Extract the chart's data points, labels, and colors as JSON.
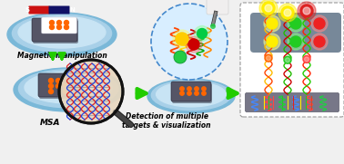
{
  "bg_color": "#f0f0f0",
  "magnet_red": "#cc1111",
  "magnet_blue": "#111166",
  "disk_outer": "#7ab8d8",
  "disk_mid": "#a8d0e8",
  "disk_inner": "#c8e4f4",
  "chip_dark": "#555566",
  "chip_light": "#778899",
  "card_white": "#ffffff",
  "orange_dot": "#ff6600",
  "label_magnetic": "Magnetic manipulation",
  "label_msa": "MSA",
  "label_detection": "Detection of multiple\ntargets & visualization",
  "arrow_green": "#22cc00",
  "circle_bg": "#d8eeff",
  "circle_edge": "#4488cc",
  "dna_red": "#dd2222",
  "dna_blue": "#2244dd",
  "dna_green": "#22bb22",
  "mag_glass_bg": "#e8d8c0",
  "mag_glass_edge": "#111111",
  "top_right_chip": "#556677",
  "dot_yellow": "#ffee00",
  "dot_green": "#22cc22",
  "dot_red": "#ee2222",
  "strand1_colors": [
    "#ffcc00",
    "#ff8800",
    "#ff4400",
    "#ff0000"
  ],
  "strand2_colors": [
    "#00cc00",
    "#008800",
    "#0088cc",
    "#cc00cc"
  ],
  "wavy_colors_bottom": [
    "#4488ff",
    "#ff4444",
    "#22cc44",
    "#ff8800",
    "#aa44ff"
  ],
  "bottom_chip_color": "#777788"
}
